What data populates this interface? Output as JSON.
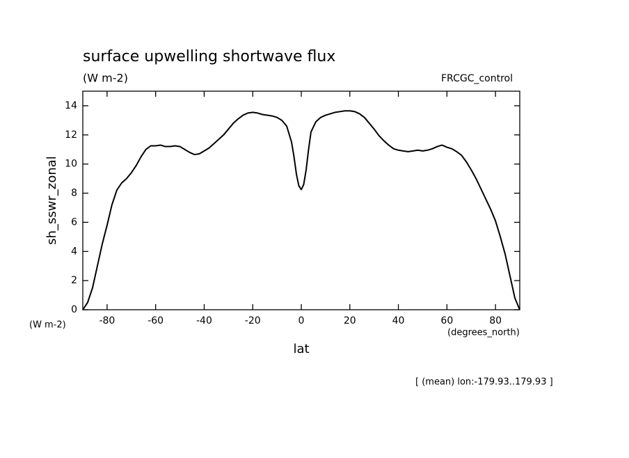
{
  "chart_data": {
    "type": "line",
    "title": "surface upwelling shortwave flux",
    "subtitle": "(W m-2)",
    "dataset_label": "FRCGC_control",
    "y_label": "sh_sswr_zonal",
    "y_units": "(W m-2)",
    "x_label": "lat",
    "x_units": "(degrees_north)",
    "footnote": "[ (mean) lon:-179.93..179.93 ]",
    "xlim": [
      -90,
      90
    ],
    "ylim": [
      0,
      15
    ],
    "xticks": [
      -80,
      -60,
      -40,
      -20,
      0,
      20,
      40,
      60,
      80
    ],
    "yticks": [
      0,
      2,
      4,
      6,
      8,
      10,
      12,
      14
    ],
    "grid": false,
    "x": [
      -90,
      -88,
      -86,
      -84,
      -82,
      -80,
      -78,
      -76,
      -74,
      -72,
      -70,
      -68,
      -66,
      -64,
      -62,
      -60,
      -58,
      -56,
      -54,
      -52,
      -50,
      -48,
      -46,
      -44,
      -42,
      -40,
      -38,
      -36,
      -34,
      -32,
      -30,
      -28,
      -26,
      -24,
      -22,
      -20,
      -18,
      -16,
      -14,
      -12,
      -10,
      -8,
      -6,
      -4,
      -3,
      -2,
      -1,
      0,
      1,
      2,
      3,
      4,
      6,
      8,
      10,
      12,
      14,
      16,
      18,
      20,
      22,
      24,
      26,
      28,
      30,
      32,
      34,
      36,
      38,
      40,
      42,
      44,
      46,
      48,
      50,
      52,
      54,
      56,
      58,
      60,
      62,
      64,
      66,
      68,
      70,
      72,
      74,
      76,
      78,
      80,
      82,
      84,
      86,
      88,
      90
    ],
    "series": [
      {
        "name": "sh_sswr_zonal",
        "color": "#000000",
        "values": [
          0,
          0.5,
          1.5,
          3,
          4.5,
          5.8,
          7.2,
          8.2,
          8.7,
          9.0,
          9.4,
          9.9,
          10.5,
          11.0,
          11.25,
          11.25,
          11.3,
          11.2,
          11.2,
          11.25,
          11.2,
          11.0,
          10.8,
          10.65,
          10.7,
          10.9,
          11.1,
          11.4,
          11.7,
          12.0,
          12.4,
          12.8,
          13.1,
          13.35,
          13.5,
          13.55,
          13.5,
          13.4,
          13.35,
          13.3,
          13.2,
          13.0,
          12.6,
          11.5,
          10.5,
          9.3,
          8.5,
          8.25,
          8.6,
          9.6,
          11,
          12.2,
          12.9,
          13.2,
          13.35,
          13.45,
          13.55,
          13.6,
          13.65,
          13.65,
          13.6,
          13.45,
          13.2,
          12.8,
          12.4,
          11.95,
          11.6,
          11.3,
          11.05,
          10.95,
          10.9,
          10.85,
          10.9,
          10.95,
          10.9,
          10.95,
          11.05,
          11.2,
          11.3,
          11.15,
          11.05,
          10.85,
          10.6,
          10.15,
          9.6,
          9.0,
          8.3,
          7.6,
          6.9,
          6.1,
          5.0,
          3.8,
          2.3,
          0.8,
          0
        ]
      }
    ]
  }
}
